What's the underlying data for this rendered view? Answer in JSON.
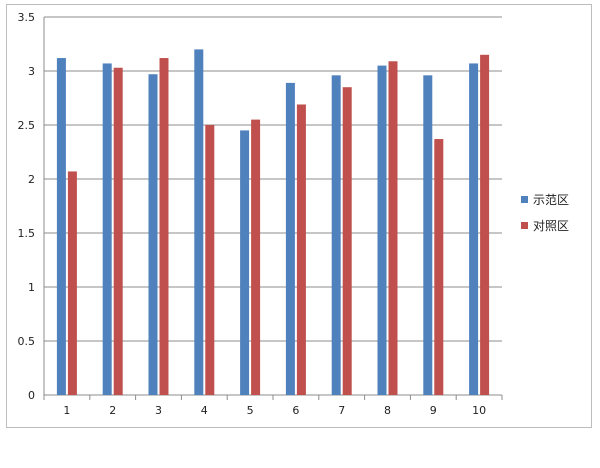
{
  "chart_data": {
    "type": "bar",
    "categories": [
      "1",
      "2",
      "3",
      "4",
      "5",
      "6",
      "7",
      "8",
      "9",
      "10"
    ],
    "series": [
      {
        "name": "示范区",
        "color": "#4f81bd",
        "values": [
          3.12,
          3.07,
          2.97,
          3.2,
          2.45,
          2.89,
          2.96,
          3.05,
          2.96,
          3.07
        ]
      },
      {
        "name": "对照区",
        "color": "#c0504d",
        "values": [
          2.07,
          3.03,
          3.12,
          2.5,
          2.55,
          2.69,
          2.85,
          3.09,
          2.37,
          3.15
        ]
      }
    ],
    "title": "",
    "xlabel": "",
    "ylabel": "",
    "ylim": [
      0,
      3.5
    ],
    "yticks": [
      "0",
      "0.5",
      "1",
      "1.5",
      "2",
      "2.5",
      "3",
      "3.5"
    ],
    "grid": "horizontal",
    "legend": "right"
  }
}
